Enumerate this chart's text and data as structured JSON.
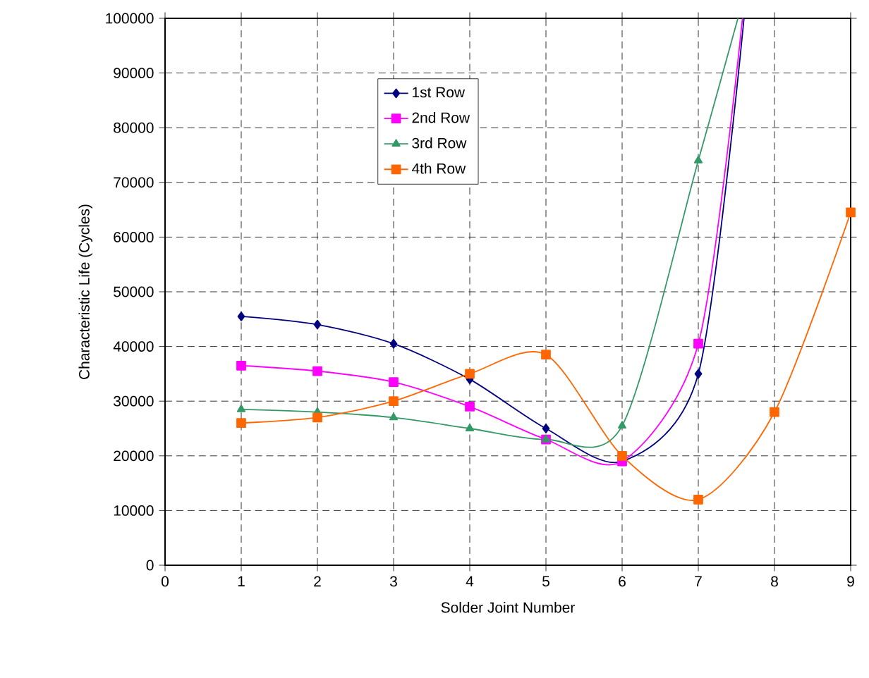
{
  "chart_data": {
    "type": "line",
    "xlabel": "Solder Joint Number",
    "ylabel": "Characteristic Life (Cycles)",
    "xlim": [
      0,
      9
    ],
    "xticks": [
      0,
      1,
      2,
      3,
      4,
      5,
      6,
      7,
      8,
      9
    ],
    "ylim": [
      0,
      100000
    ],
    "yticks": [
      0,
      10000,
      20000,
      30000,
      40000,
      50000,
      60000,
      70000,
      80000,
      90000,
      100000
    ],
    "grid": true,
    "legend": "top",
    "series": [
      {
        "name": "1st Row",
        "color": "#000080",
        "marker": "diamond",
        "x": [
          1,
          2,
          3,
          4,
          5,
          6,
          7,
          7.6
        ],
        "values": [
          45500,
          44000,
          40500,
          34000,
          25000,
          19000,
          35000,
          100000
        ]
      },
      {
        "name": "2nd Row",
        "color": "#ff00ff",
        "marker": "square",
        "x": [
          1,
          2,
          3,
          4,
          5,
          6,
          7,
          7.58
        ],
        "values": [
          36500,
          35500,
          33500,
          29000,
          23000,
          19000,
          40500,
          100000
        ]
      },
      {
        "name": "3rd Row",
        "color": "#339966",
        "marker": "triangle",
        "x": [
          1,
          2,
          3,
          4,
          5,
          6,
          7,
          7.52
        ],
        "values": [
          28500,
          28000,
          27000,
          25000,
          23000,
          25500,
          74000,
          100000
        ]
      },
      {
        "name": "4th Row",
        "color": "#ff6600",
        "marker": "square",
        "x": [
          1,
          2,
          3,
          4,
          5,
          6,
          7,
          8,
          9
        ],
        "values": [
          26000,
          27000,
          30000,
          35000,
          38500,
          20000,
          12000,
          28000,
          64500
        ]
      }
    ]
  }
}
